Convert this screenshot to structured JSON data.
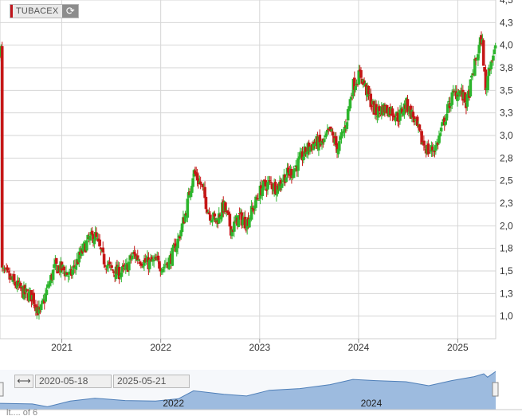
{
  "ticker": {
    "name": "TUBACEX",
    "refresh_icon": "refresh-icon",
    "swatch_color": "#c0141b"
  },
  "navigator": {
    "range_icon": "range-arrows-icon",
    "from_date": "2020-05-18",
    "to_date": "2025-05-21",
    "labels": [
      "2022",
      "2024"
    ]
  },
  "footer_fragment": "lt.... of 6",
  "colors": {
    "up": "#2db52d",
    "down": "#c51717",
    "grid": "#d6d6d6",
    "navigator_fill": "#9dbbdf",
    "navigator_line": "#4f7fb8"
  },
  "chart_data": {
    "type": "candlestick",
    "title": "TUBACEX",
    "xlabel": "",
    "ylabel": "",
    "x_ticks": [
      "2021",
      "2022",
      "2023",
      "2024",
      "2025"
    ],
    "y_ticks": [
      "1,0",
      "1,3",
      "1,5",
      "1,8",
      "2,0",
      "2,3",
      "2,5",
      "2,8",
      "3,0",
      "3,3",
      "3,5",
      "3,8",
      "4,0",
      "4,3",
      "4,5"
    ],
    "y_tick_values": [
      1.0,
      1.25,
      1.5,
      1.75,
      2.0,
      2.25,
      2.5,
      2.75,
      3.0,
      3.25,
      3.5,
      3.75,
      4.0,
      4.25,
      4.5
    ],
    "ylim": [
      0.75,
      4.5
    ],
    "xlim": [
      "2020-05-18",
      "2025-05-21"
    ],
    "grid": true,
    "closes": [
      [
        "2020-05-25",
        1.5
      ],
      [
        "2020-06-22",
        1.42
      ],
      [
        "2020-07-20",
        1.33
      ],
      [
        "2020-08-17",
        1.25
      ],
      [
        "2020-09-14",
        1.22
      ],
      [
        "2020-10-12",
        1.02
      ],
      [
        "2020-11-09",
        1.3
      ],
      [
        "2020-12-07",
        1.55
      ],
      [
        "2021-01-04",
        1.52
      ],
      [
        "2021-02-01",
        1.44
      ],
      [
        "2021-03-01",
        1.62
      ],
      [
        "2021-04-05",
        1.82
      ],
      [
        "2021-05-03",
        1.9
      ],
      [
        "2021-05-31",
        1.65
      ],
      [
        "2021-06-28",
        1.52
      ],
      [
        "2021-07-26",
        1.48
      ],
      [
        "2021-08-23",
        1.5
      ],
      [
        "2021-09-20",
        1.68
      ],
      [
        "2021-10-18",
        1.63
      ],
      [
        "2021-11-15",
        1.58
      ],
      [
        "2021-12-13",
        1.6
      ],
      [
        "2022-01-10",
        1.55
      ],
      [
        "2022-02-07",
        1.64
      ],
      [
        "2022-03-07",
        1.85
      ],
      [
        "2022-04-04",
        2.15
      ],
      [
        "2022-05-02",
        2.6
      ],
      [
        "2022-05-30",
        2.45
      ],
      [
        "2022-06-27",
        2.15
      ],
      [
        "2022-07-25",
        2.05
      ],
      [
        "2022-08-22",
        2.22
      ],
      [
        "2022-09-19",
        1.95
      ],
      [
        "2022-10-17",
        2.1
      ],
      [
        "2022-11-14",
        2.03
      ],
      [
        "2022-12-12",
        2.22
      ],
      [
        "2023-01-09",
        2.42
      ],
      [
        "2023-02-06",
        2.47
      ],
      [
        "2023-03-06",
        2.42
      ],
      [
        "2023-04-03",
        2.55
      ],
      [
        "2023-05-01",
        2.6
      ],
      [
        "2023-05-29",
        2.72
      ],
      [
        "2023-06-26",
        2.85
      ],
      [
        "2023-07-24",
        2.92
      ],
      [
        "2023-08-21",
        2.9
      ],
      [
        "2023-09-18",
        3.05
      ],
      [
        "2023-10-16",
        2.85
      ],
      [
        "2023-11-13",
        3.1
      ],
      [
        "2023-12-11",
        3.55
      ],
      [
        "2024-01-08",
        3.68
      ],
      [
        "2024-02-05",
        3.45
      ],
      [
        "2024-03-04",
        3.25
      ],
      [
        "2024-04-01",
        3.3
      ],
      [
        "2024-04-29",
        3.28
      ],
      [
        "2024-05-27",
        3.2
      ],
      [
        "2024-06-24",
        3.35
      ],
      [
        "2024-07-22",
        3.2
      ],
      [
        "2024-08-19",
        2.95
      ],
      [
        "2024-09-16",
        2.82
      ],
      [
        "2024-10-14",
        2.88
      ],
      [
        "2024-11-11",
        3.15
      ],
      [
        "2024-12-09",
        3.42
      ],
      [
        "2025-01-06",
        3.5
      ],
      [
        "2025-02-03",
        3.35
      ],
      [
        "2025-03-03",
        3.75
      ],
      [
        "2025-03-31",
        4.1
      ],
      [
        "2025-04-14",
        3.48
      ],
      [
        "2025-04-28",
        3.8
      ],
      [
        "2025-05-21",
        3.95
      ]
    ],
    "navigator_closes": [
      [
        "2020-05-18",
        1.4
      ],
      [
        "2020-09-14",
        1.25
      ],
      [
        "2020-11-09",
        1.1
      ],
      [
        "2021-02-01",
        1.5
      ],
      [
        "2021-05-03",
        1.85
      ],
      [
        "2021-08-23",
        1.55
      ],
      [
        "2021-12-13",
        1.6
      ],
      [
        "2022-03-07",
        1.7
      ],
      [
        "2022-05-02",
        2.5
      ],
      [
        "2022-08-22",
        2.1
      ],
      [
        "2022-11-14",
        2.05
      ],
      [
        "2023-02-06",
        2.45
      ],
      [
        "2023-05-29",
        2.7
      ],
      [
        "2023-09-18",
        2.95
      ],
      [
        "2023-12-11",
        3.5
      ],
      [
        "2024-03-04",
        3.3
      ],
      [
        "2024-06-24",
        3.3
      ],
      [
        "2024-09-16",
        2.85
      ],
      [
        "2024-12-09",
        3.4
      ],
      [
        "2025-03-03",
        3.65
      ],
      [
        "2025-04-07",
        4.0
      ],
      [
        "2025-04-21",
        3.6
      ],
      [
        "2025-05-21",
        4.2
      ]
    ]
  }
}
